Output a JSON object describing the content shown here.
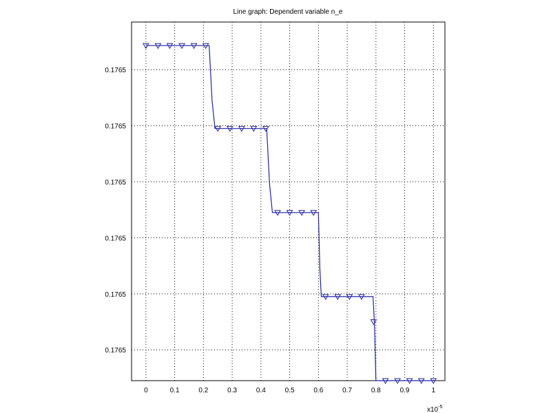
{
  "chart_data": {
    "type": "line",
    "title": "Line graph: Dependent variable n_e",
    "xlabel": "",
    "ylabel": "",
    "x_multiplier_label": "x10",
    "x_multiplier_exponent": "-5",
    "xlim": [
      -0.05,
      1.04
    ],
    "ylim": [
      0.0,
      6.4
    ],
    "grid": true,
    "x_ticks": [
      0,
      0.1,
      0.2,
      0.3,
      0.4,
      0.5,
      0.6,
      0.7,
      0.8,
      0.9,
      1
    ],
    "x_tick_labels": [
      "0",
      "0.1",
      "0.2",
      "0.3",
      "0.4",
      "0.5",
      "0.6",
      "0.7",
      "0.8",
      "0.9",
      "1"
    ],
    "y_ticks": [
      0.55,
      1.55,
      2.55,
      3.55,
      4.55,
      5.55
    ],
    "y_tick_labels": [
      "0.1765",
      "0.1765",
      "0.1765",
      "0.1765",
      "0.1765",
      "0.1765"
    ],
    "series": [
      {
        "line_x": [
          0,
          0.22,
          0.23,
          0.24,
          0.42,
          0.43,
          0.44,
          0.6,
          0.605,
          0.61,
          0.79,
          0.795,
          0.8,
          1
        ],
        "line_y": [
          5.98,
          5.98,
          5.0,
          4.5,
          4.5,
          3.5,
          3.0,
          3.0,
          2.0,
          1.5,
          1.5,
          1.0,
          0.0,
          0.0
        ],
        "markers_x": [
          0,
          0.042,
          0.083,
          0.125,
          0.167,
          0.208,
          0.25,
          0.292,
          0.333,
          0.375,
          0.417,
          0.458,
          0.5,
          0.542,
          0.583,
          0.625,
          0.667,
          0.708,
          0.75,
          0.792,
          0.833,
          0.875,
          0.917,
          0.958,
          1
        ],
        "markers_y": [
          5.98,
          5.98,
          5.98,
          5.98,
          5.98,
          5.98,
          4.5,
          4.5,
          4.5,
          4.5,
          4.5,
          3.0,
          3.0,
          3.0,
          3.0,
          1.5,
          1.5,
          1.5,
          1.5,
          1.05,
          0.0,
          0.0,
          0.0,
          0.0,
          0.0
        ]
      }
    ]
  },
  "colors": {
    "series": "#1f22a6",
    "axes": "#000000"
  }
}
